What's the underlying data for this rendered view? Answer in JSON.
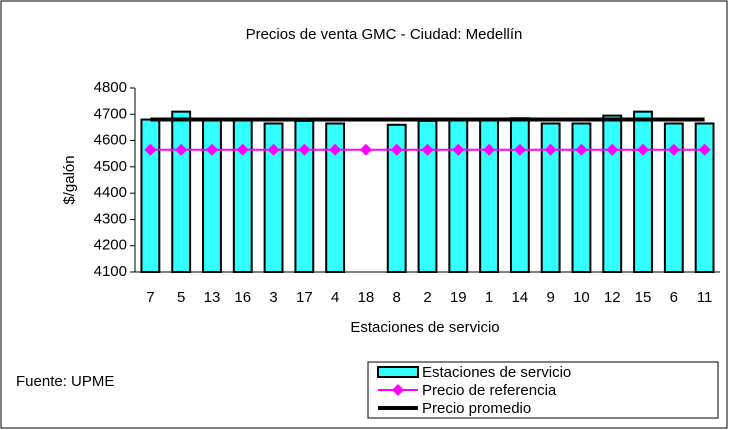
{
  "chart_data": {
    "type": "bar",
    "title": "Precios de venta GMC - Ciudad: Medellín",
    "x_label": "Estaciones de servicio",
    "y_label": "$/galón",
    "note": "Fuente: UPME",
    "categories": [
      "7",
      "5",
      "13",
      "16",
      "3",
      "17",
      "4",
      "18",
      "8",
      "2",
      "19",
      "1",
      "14",
      "9",
      "10",
      "12",
      "15",
      "6",
      "11"
    ],
    "series": [
      {
        "name": "Estaciones de servicio",
        "type": "bar",
        "color": "#33ffff",
        "values": [
          4680,
          4710,
          4680,
          4680,
          4665,
          4675,
          4665,
          null,
          4660,
          4675,
          4680,
          4680,
          4685,
          4665,
          4665,
          4695,
          4710,
          4665,
          4665
        ]
      },
      {
        "name": "Precio de referencia",
        "type": "line",
        "marker": "diamond",
        "color": "#ff00ff",
        "values": [
          4565,
          4565,
          4565,
          4565,
          4565,
          4565,
          4565,
          4565,
          4565,
          4565,
          4565,
          4565,
          4565,
          4565,
          4565,
          4565,
          4565,
          4565,
          4565
        ]
      },
      {
        "name": "Precio promedio",
        "type": "line",
        "color": "#000000",
        "values": [
          4680,
          4680,
          4680,
          4680,
          4680,
          4680,
          4680,
          4680,
          4680,
          4680,
          4680,
          4680,
          4680,
          4680,
          4680,
          4680,
          4680,
          4680,
          4680
        ]
      }
    ],
    "ylim": [
      4100,
      4800
    ],
    "yticks": [
      4100,
      4200,
      4300,
      4400,
      4500,
      4600,
      4700,
      4800
    ],
    "legend": "bottom-right"
  }
}
